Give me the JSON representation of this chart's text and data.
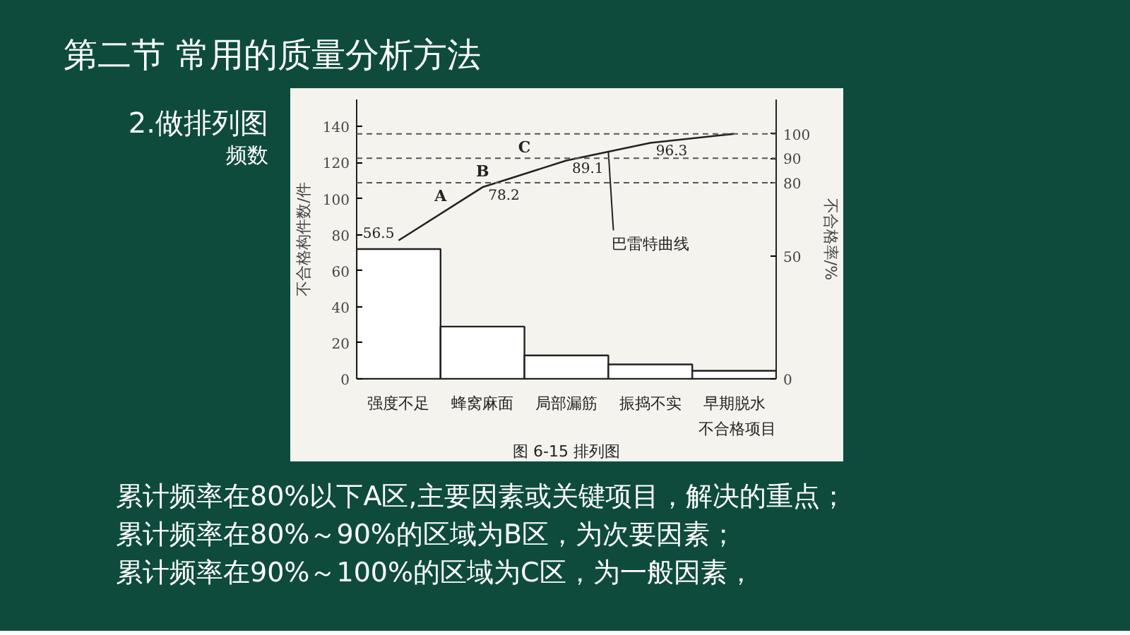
{
  "chart_data": {
    "type": "bar",
    "title": "第二节 常用的质量分析方法",
    "subtitle": "2.做排列图",
    "xlabel": "不合格项目",
    "ylabel": "不合格构件数/件",
    "y2label": "不合格率/%",
    "annotations": [
      "频数",
      "图 6-15 排列图",
      "累计频率在80%以下A区,主要因素或关键项目，解决的重点；",
      "累计频率在80%～90%的区域为B区，为次要因素；",
      "累计频率在90%～100%的区域为C区，为一般因素，"
    ],
    "categories": [
      "强度不足",
      "蜂窝麻面",
      "局部漏筋",
      "振捣不实",
      "早期脱水"
    ],
    "series": [
      {
        "color": "#ffffff",
        "values": [
          72,
          29,
          13,
          8,
          4.5
        ]
      },
      {
        "type": "line",
        "name": "巴雷特曲线",
        "axis": "y2",
        "color": "#222222",
        "values": [
          56.5,
          78.2,
          89.1,
          96.3,
          100
        ],
        "value_labels": [
          "56.5",
          "78.2",
          "89.1",
          "96.3",
          null
        ]
      }
    ],
    "ylim": [
      0,
      155
    ],
    "yticks": [
      0,
      20,
      40,
      60,
      80,
      100,
      120,
      140
    ],
    "y2lim": [
      0,
      114
    ],
    "y2ticks": [
      0,
      50,
      80,
      90,
      100
    ],
    "ref_lines": [
      {
        "axis": "y2",
        "value": 80,
        "label": "A",
        "line_style": "dashed",
        "color": "#555555"
      },
      {
        "axis": "y2",
        "value": 90,
        "label": "B",
        "line_style": "dashed",
        "color": "#555555"
      },
      {
        "axis": "y2",
        "value": 100,
        "label": "C",
        "line_style": "dashed",
        "color": "#555555"
      }
    ],
    "grid": false,
    "legend": false
  }
}
